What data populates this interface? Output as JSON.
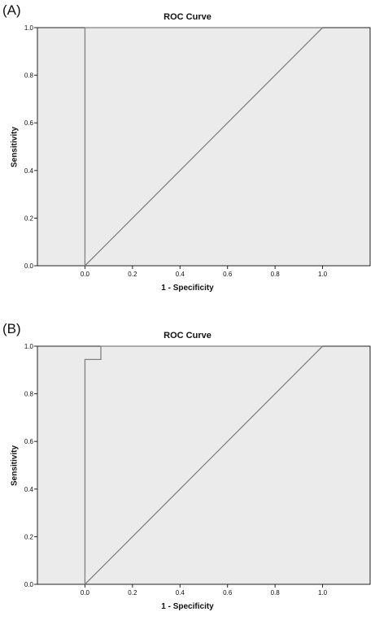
{
  "chart_data": [
    {
      "panel_label": "(A)",
      "type": "line",
      "title": "ROC Curve",
      "xlabel": "1 - Specificity",
      "ylabel": "Sensitivity",
      "xlim": [
        -0.2,
        1.2
      ],
      "ylim": [
        0,
        1
      ],
      "xticks": [
        "0.0",
        "0.2",
        "0.4",
        "0.6",
        "0.8",
        "1.0"
      ],
      "yticks": [
        "0.0",
        "0.2",
        "0.4",
        "0.6",
        "0.8",
        "1.0"
      ],
      "background_color": "#ebebeb",
      "line_color": "#808080",
      "legend": "none",
      "grid": false,
      "series": [
        {
          "style": "step",
          "x": [
            0.0,
            0.0,
            1.0
          ],
          "y": [
            0.0,
            1.0,
            1.0
          ]
        },
        {
          "style": "diagonal",
          "x": [
            0.0,
            1.0
          ],
          "y": [
            0.0,
            1.0
          ]
        }
      ]
    },
    {
      "panel_label": "(B)",
      "type": "line",
      "title": "ROC Curve",
      "xlabel": "1 - Specificity",
      "ylabel": "Sensitivity",
      "xlim": [
        -0.2,
        1.2
      ],
      "ylim": [
        0,
        1
      ],
      "xticks": [
        "0.0",
        "0.2",
        "0.4",
        "0.6",
        "0.8",
        "1.0"
      ],
      "yticks": [
        "0.0",
        "0.2",
        "0.4",
        "0.6",
        "0.8",
        "1.0"
      ],
      "background_color": "#ebebeb",
      "line_color": "#808080",
      "legend": "none",
      "grid": false,
      "series": [
        {
          "style": "step",
          "x": [
            0.0,
            0.0,
            0.067,
            0.067,
            1.0
          ],
          "y": [
            0.0,
            0.944,
            0.944,
            1.0,
            1.0
          ]
        },
        {
          "style": "diagonal",
          "x": [
            0.0,
            1.0
          ],
          "y": [
            0.0,
            1.0
          ]
        }
      ]
    }
  ]
}
